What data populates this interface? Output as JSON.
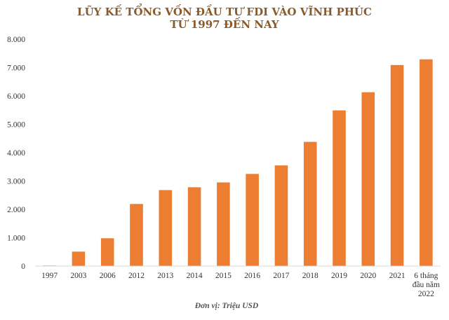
{
  "chart_data": {
    "type": "bar",
    "title": "LŨY KẾ TỔNG VỐN ĐẦU TƯ FDI VÀO VĨNH PHÚC",
    "subtitle": "TỪ 1997 ĐẾN NAY",
    "unit_note": "Đơn vị: Triệu USD",
    "categories": [
      [
        "1997"
      ],
      [
        "2003"
      ],
      [
        "2006"
      ],
      [
        "2012"
      ],
      [
        "2013"
      ],
      [
        "2014"
      ],
      [
        "2015"
      ],
      [
        "2016"
      ],
      [
        "2017"
      ],
      [
        "2018"
      ],
      [
        "2019"
      ],
      [
        "2020"
      ],
      [
        "2021"
      ],
      [
        "6 tháng",
        "đầu năm",
        "2022"
      ]
    ],
    "values": [
      20,
      510,
      980,
      2190,
      2680,
      2780,
      2950,
      3250,
      3550,
      4380,
      5490,
      6130,
      7090,
      7290
    ],
    "ylim": [
      0,
      8000
    ],
    "yticks": [
      "0",
      "1.000",
      "2.000",
      "3.000",
      "4.000",
      "5.000",
      "6.000",
      "7.000",
      "8.000"
    ],
    "ytick_values": [
      0,
      1000,
      2000,
      3000,
      4000,
      5000,
      6000,
      7000,
      8000
    ],
    "bar_color": "#ed7d31",
    "grid": false
  }
}
